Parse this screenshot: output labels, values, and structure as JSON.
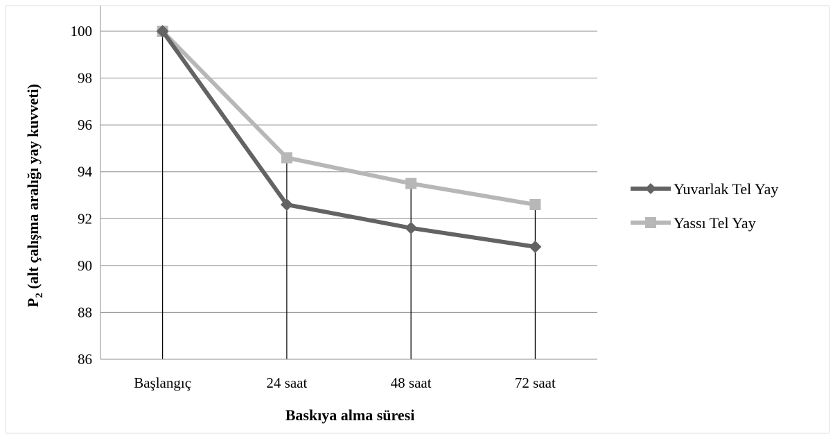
{
  "chart_data": {
    "type": "line",
    "categories": [
      "Başlangıç",
      "24 saat",
      "48 saat",
      "72 saat"
    ],
    "series": [
      {
        "name": "Yuvarlak Tel Yay",
        "values": [
          100,
          92.6,
          91.6,
          90.8
        ],
        "color": "#636363",
        "marker": "diamond"
      },
      {
        "name": "Yassı Tel Yay",
        "values": [
          100,
          94.6,
          93.5,
          92.6
        ],
        "color": "#b7b7b7",
        "marker": "square"
      }
    ],
    "xlabel": "Baskıya alma süresi",
    "ylabel_main": "P",
    "ylabel_sub": "2",
    "ylabel_rest": " (alt çalışma aralığı yay kuvveti)",
    "ylim": [
      86,
      100
    ],
    "yticks": [
      86,
      88,
      90,
      92,
      94,
      96,
      98,
      100
    ],
    "grid": true,
    "legend_position": "right"
  }
}
